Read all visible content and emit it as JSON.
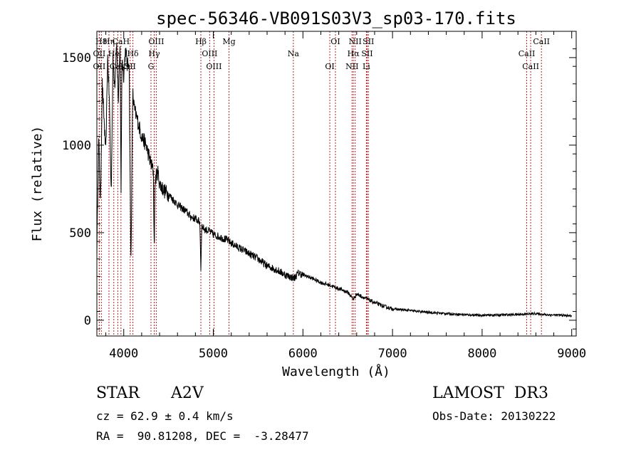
{
  "chart_data": {
    "type": "line",
    "title": "spec-56346-VB091S03V3_sp03-170.fits",
    "xlabel": "Wavelength (Å)",
    "ylabel": "Flux (relative)",
    "xlim": [
      3700,
      9050
    ],
    "ylim": [
      -90,
      1650
    ],
    "x_ticks": [
      4000,
      5000,
      6000,
      7000,
      8000,
      9000
    ],
    "y_ticks": [
      0,
      500,
      1000,
      1500
    ],
    "grid": false,
    "line_color": "#000000",
    "marker_color": "#b22222",
    "series": [
      {
        "name": "flux",
        "x": [
          3700,
          3720,
          3740,
          3760,
          3780,
          3800,
          3820,
          3840,
          3860,
          3880,
          3900,
          3920,
          3940,
          3960,
          3970,
          3980,
          4000,
          4020,
          4040,
          4060,
          4080,
          4100,
          4120,
          4150,
          4200,
          4250,
          4300,
          4330,
          4340,
          4350,
          4360,
          4380,
          4400,
          4450,
          4500,
          4550,
          4600,
          4650,
          4700,
          4750,
          4800,
          4850,
          4861,
          4870,
          4900,
          4950,
          5000,
          5050,
          5100,
          5150,
          5200,
          5300,
          5400,
          5500,
          5600,
          5700,
          5800,
          5900,
          5950,
          6000,
          6100,
          6200,
          6300,
          6400,
          6500,
          6563,
          6600,
          6700,
          6800,
          6900,
          7000,
          7200,
          7400,
          7600,
          7800,
          8000,
          8200,
          8400,
          8500,
          8600,
          8700,
          8800,
          8900,
          9000
        ],
        "y": [
          400,
          1050,
          650,
          1350,
          1150,
          950,
          1500,
          1250,
          720,
          1480,
          1350,
          1600,
          1250,
          1580,
          700,
          1500,
          1400,
          1550,
          1450,
          1480,
          300,
          1300,
          1200,
          1150,
          1050,
          1000,
          900,
          850,
          400,
          800,
          820,
          850,
          780,
          740,
          720,
          690,
          660,
          640,
          620,
          590,
          580,
          560,
          280,
          540,
          520,
          510,
          490,
          480,
          470,
          460,
          440,
          410,
          380,
          350,
          310,
          290,
          260,
          240,
          270,
          260,
          240,
          215,
          200,
          180,
          160,
          120,
          150,
          125,
          100,
          80,
          65,
          55,
          45,
          38,
          32,
          28,
          30,
          33,
          35,
          38,
          32,
          30,
          28,
          25
        ]
      }
    ],
    "lines": [
      {
        "name": "H8",
        "x": 3750
      },
      {
        "name": "OII",
        "x": 3727
      },
      {
        "name": "OII",
        "x": 3727
      },
      {
        "name": "Hη",
        "x": 3835
      },
      {
        "name": "He",
        "x": 3889
      },
      {
        "name": "CaK",
        "x": 3934
      },
      {
        "name": "CaH",
        "x": 3969
      },
      {
        "name": "Hδ",
        "x": 4102
      },
      {
        "name": "SII",
        "x": 4072
      },
      {
        "name": "OIII",
        "x": 4363
      },
      {
        "name": "Hγ",
        "x": 4340
      },
      {
        "name": "G",
        "x": 4304
      },
      {
        "name": "Hβ",
        "x": 4861
      },
      {
        "name": "OIII",
        "x": 4959
      },
      {
        "name": "OIII",
        "x": 5007
      },
      {
        "name": "Mg",
        "x": 5175
      },
      {
        "name": "Na",
        "x": 5893
      },
      {
        "name": "OI",
        "x": 6300
      },
      {
        "name": "OI",
        "x": 6363
      },
      {
        "name": "Hα",
        "x": 6563
      },
      {
        "name": "NII",
        "x": 6548
      },
      {
        "name": "NII",
        "x": 6583
      },
      {
        "name": "SII",
        "x": 6717
      },
      {
        "name": "Li",
        "x": 6708
      },
      {
        "name": "SII",
        "x": 6731
      },
      {
        "name": "CaII",
        "x": 8498
      },
      {
        "name": "CaII",
        "x": 8542
      },
      {
        "name": "CaII",
        "x": 8662
      }
    ]
  },
  "info": {
    "object_class": "STAR",
    "subclass": "A2V",
    "survey": "LAMOST  DR3",
    "velocity": "cz = 62.9 ± 0.4 km/s",
    "obs_date": "Obs-Date: 20130222",
    "coords": "RA =  90.81208, DEC =  -3.28477"
  }
}
